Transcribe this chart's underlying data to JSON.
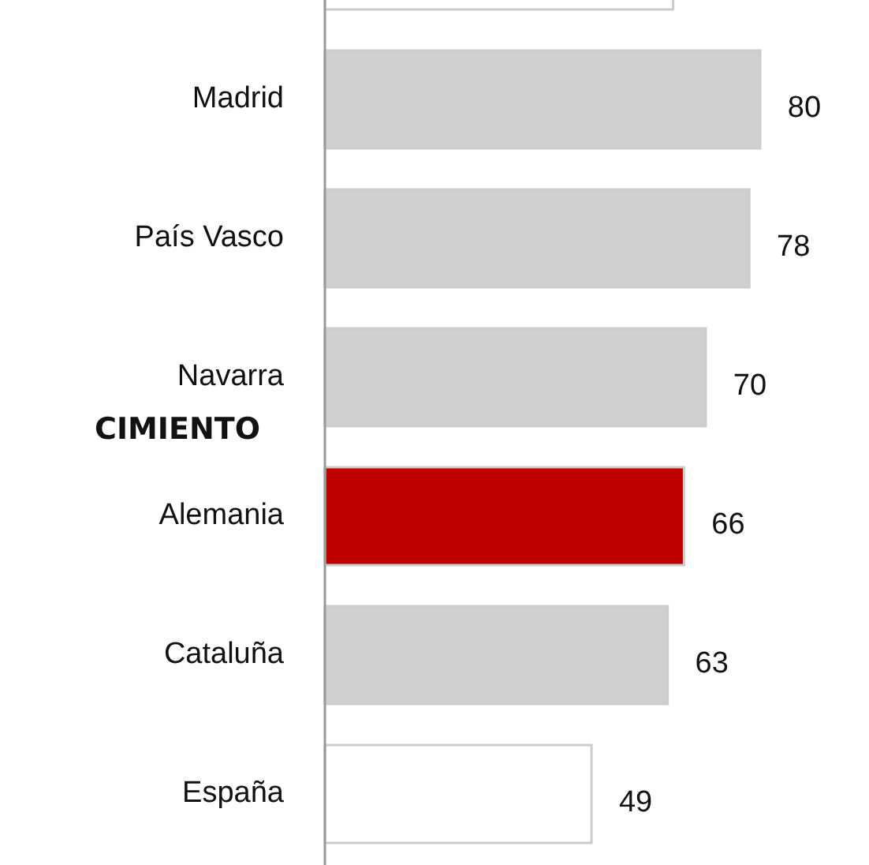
{
  "chart_data": {
    "type": "bar",
    "orientation": "horizontal",
    "categories": [
      null,
      "Madrid",
      "País Vasco",
      "Navarra",
      "Alemania",
      "Cataluña",
      "España"
    ],
    "values": [
      64,
      80,
      78,
      70,
      66,
      63,
      49
    ],
    "value_labels": [
      null,
      "80",
      "78",
      "70",
      "66",
      "63",
      "49"
    ],
    "colors": [
      "#ffffff",
      "#d0d0d0",
      "#d0d0d0",
      "#d0d0d0",
      "#c00000",
      "#d0d0d0",
      "#ffffff"
    ],
    "annotations": [
      "CIMIENTO"
    ]
  }
}
